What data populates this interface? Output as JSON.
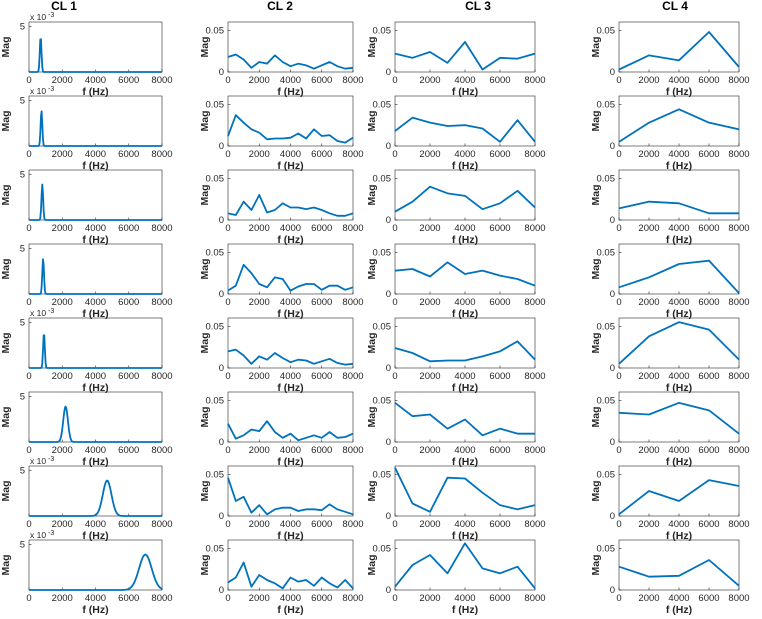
{
  "colors": {
    "series": "#0072BD",
    "axes": "#262626",
    "background": "#ffffff"
  },
  "columns": [
    {
      "title": "CL 1",
      "yticks": [
        "5"
      ],
      "exponent": "x 10",
      "exponent_power": "-3"
    },
    {
      "title": "CL 2",
      "yticks": [
        "0",
        "0.05"
      ]
    },
    {
      "title": "CL 3",
      "yticks": [
        "0",
        "0.05"
      ]
    },
    {
      "title": "CL 4",
      "yticks": [
        "0",
        "0.05"
      ]
    }
  ],
  "xticks": [
    "0",
    "2000",
    "4000",
    "6000",
    "8000"
  ],
  "xlabel": "f (Hz)",
  "ylabel": "Mag",
  "chart_data": [
    {
      "id": "r1c1",
      "type": "line",
      "ylabel": "Mag",
      "xlabel": "f (Hz)",
      "xlim": [
        0,
        8000
      ],
      "ylim": [
        0,
        0.0055
      ],
      "yscale_label": "x10^-3",
      "series": [
        {
          "peak_x": 700,
          "peak_y": 0.0039,
          "width": 50
        }
      ]
    },
    {
      "id": "r2c1",
      "type": "line",
      "ylabel": "Mag",
      "xlabel": "f (Hz)",
      "xlim": [
        0,
        8000
      ],
      "ylim": [
        0,
        0.0055
      ],
      "yscale_label": "x10^-3",
      "series": [
        {
          "peak_x": 750,
          "peak_y": 0.0039,
          "width": 50
        }
      ]
    },
    {
      "id": "r3c1",
      "type": "line",
      "ylabel": "Mag",
      "xlabel": "f (Hz)",
      "xlim": [
        0,
        8000
      ],
      "ylim": [
        0,
        0.0055
      ],
      "series": [
        {
          "peak_x": 800,
          "peak_y": 0.0039,
          "width": 50
        }
      ]
    },
    {
      "id": "r4c1",
      "type": "line",
      "ylabel": "Mag",
      "xlabel": "f (Hz)",
      "xlim": [
        0,
        8000
      ],
      "ylim": [
        0,
        0.0055
      ],
      "series": [
        {
          "peak_x": 850,
          "peak_y": 0.0039,
          "width": 50
        }
      ]
    },
    {
      "id": "r5c1",
      "type": "line",
      "ylabel": "Mag",
      "xlabel": "f (Hz)",
      "xlim": [
        0,
        8000
      ],
      "ylim": [
        0,
        0.0055
      ],
      "yscale_label": "x10^-3",
      "series": [
        {
          "peak_x": 900,
          "peak_y": 0.0039,
          "width": 50
        }
      ]
    },
    {
      "id": "r6c1",
      "type": "line",
      "ylabel": "Mag",
      "xlabel": "f (Hz)",
      "xlim": [
        0,
        8000
      ],
      "ylim": [
        0,
        0.0055
      ],
      "series": [
        {
          "peak_x": 2200,
          "peak_y": 0.0039,
          "width": 140
        }
      ]
    },
    {
      "id": "r7c1",
      "type": "line",
      "ylabel": "Mag",
      "xlabel": "f (Hz)",
      "xlim": [
        0,
        8000
      ],
      "ylim": [
        0,
        0.0055
      ],
      "yscale_label": "x10^-3",
      "series": [
        {
          "peak_x": 4700,
          "peak_y": 0.0039,
          "width": 260
        }
      ]
    },
    {
      "id": "r8c1",
      "type": "line",
      "ylabel": "Mag",
      "xlabel": "f (Hz)",
      "xlim": [
        0,
        8000
      ],
      "ylim": [
        0,
        0.0055
      ],
      "yscale_label": "x10^-3",
      "series": [
        {
          "peak_x": 7000,
          "peak_y": 0.0039,
          "width": 380
        }
      ]
    },
    {
      "id": "r1c2",
      "type": "line",
      "ylabel": "Mag",
      "xlabel": "f (Hz)",
      "xlim": [
        0,
        8000
      ],
      "ylim": [
        0,
        0.06
      ],
      "x": [
        0,
        500,
        1000,
        1500,
        2000,
        2500,
        3000,
        3500,
        4000,
        4500,
        5000,
        5500,
        6000,
        6500,
        7000,
        7500,
        8000
      ],
      "y": [
        0.018,
        0.021,
        0.015,
        0.005,
        0.012,
        0.01,
        0.02,
        0.012,
        0.007,
        0.01,
        0.008,
        0.004,
        0.008,
        0.012,
        0.007,
        0.004,
        0.005
      ]
    },
    {
      "id": "r2c2",
      "type": "line",
      "ylabel": "Mag",
      "xlabel": "f (Hz)",
      "xlim": [
        0,
        8000
      ],
      "ylim": [
        0,
        0.06
      ],
      "x": [
        0,
        500,
        1000,
        1500,
        2000,
        2500,
        3000,
        3500,
        4000,
        4500,
        5000,
        5500,
        6000,
        6500,
        7000,
        7500,
        8000
      ],
      "y": [
        0.012,
        0.037,
        0.028,
        0.02,
        0.016,
        0.008,
        0.009,
        0.009,
        0.01,
        0.015,
        0.009,
        0.02,
        0.012,
        0.013,
        0.006,
        0.004,
        0.01
      ]
    },
    {
      "id": "r3c2",
      "type": "line",
      "ylabel": "Mag",
      "xlabel": "f (Hz)",
      "xlim": [
        0,
        8000
      ],
      "ylim": [
        0,
        0.06
      ],
      "x": [
        0,
        500,
        1000,
        1500,
        2000,
        2500,
        3000,
        3500,
        4000,
        4500,
        5000,
        5500,
        6000,
        6500,
        7000,
        7500,
        8000
      ],
      "y": [
        0.008,
        0.006,
        0.022,
        0.012,
        0.03,
        0.009,
        0.012,
        0.02,
        0.015,
        0.015,
        0.013,
        0.015,
        0.012,
        0.008,
        0.005,
        0.005,
        0.008
      ]
    },
    {
      "id": "r4c2",
      "type": "line",
      "ylabel": "Mag",
      "xlabel": "f (Hz)",
      "xlim": [
        0,
        8000
      ],
      "ylim": [
        0,
        0.06
      ],
      "x": [
        0,
        500,
        1000,
        1500,
        2000,
        2500,
        3000,
        3500,
        4000,
        4500,
        5000,
        5500,
        6000,
        6500,
        7000,
        7500,
        8000
      ],
      "y": [
        0.004,
        0.01,
        0.035,
        0.025,
        0.012,
        0.008,
        0.02,
        0.018,
        0.004,
        0.009,
        0.012,
        0.012,
        0.005,
        0.01,
        0.01,
        0.005,
        0.008
      ]
    },
    {
      "id": "r5c2",
      "type": "line",
      "ylabel": "Mag",
      "xlabel": "f (Hz)",
      "xlim": [
        0,
        8000
      ],
      "ylim": [
        0,
        0.06
      ],
      "x": [
        0,
        500,
        1000,
        1500,
        2000,
        2500,
        3000,
        3500,
        4000,
        4500,
        5000,
        5500,
        6000,
        6500,
        7000,
        7500,
        8000
      ],
      "y": [
        0.02,
        0.022,
        0.015,
        0.005,
        0.014,
        0.01,
        0.018,
        0.012,
        0.007,
        0.01,
        0.009,
        0.005,
        0.008,
        0.011,
        0.006,
        0.004,
        0.005
      ]
    },
    {
      "id": "r6c2",
      "type": "line",
      "ylabel": "Mag",
      "xlabel": "f (Hz)",
      "xlim": [
        0,
        8000
      ],
      "ylim": [
        0,
        0.06
      ],
      "x": [
        0,
        500,
        1000,
        1500,
        2000,
        2500,
        3000,
        3500,
        4000,
        4500,
        5000,
        5500,
        6000,
        6500,
        7000,
        7500,
        8000
      ],
      "y": [
        0.022,
        0.004,
        0.008,
        0.015,
        0.013,
        0.025,
        0.012,
        0.005,
        0.01,
        0.002,
        0.005,
        0.008,
        0.005,
        0.012,
        0.005,
        0.006,
        0.01
      ]
    },
    {
      "id": "r7c2",
      "type": "line",
      "ylabel": "Mag",
      "xlabel": "f (Hz)",
      "xlim": [
        0,
        8000
      ],
      "ylim": [
        0,
        0.06
      ],
      "x": [
        0,
        500,
        1000,
        1500,
        2000,
        2500,
        3000,
        3500,
        4000,
        4500,
        5000,
        5500,
        6000,
        6500,
        7000,
        7500,
        8000
      ],
      "y": [
        0.046,
        0.018,
        0.023,
        0.004,
        0.013,
        0.002,
        0.008,
        0.01,
        0.01,
        0.006,
        0.008,
        0.008,
        0.007,
        0.014,
        0.008,
        0.005,
        0.002
      ]
    },
    {
      "id": "r8c2",
      "type": "line",
      "ylabel": "Mag",
      "xlabel": "f (Hz)",
      "xlim": [
        0,
        8000
      ],
      "ylim": [
        0,
        0.06
      ],
      "x": [
        0,
        500,
        1000,
        1500,
        2000,
        2500,
        3000,
        3500,
        4000,
        4500,
        5000,
        5500,
        6000,
        6500,
        7000,
        7500,
        8000
      ],
      "y": [
        0.009,
        0.015,
        0.033,
        0.004,
        0.018,
        0.012,
        0.008,
        0.002,
        0.015,
        0.01,
        0.012,
        0.005,
        0.015,
        0.008,
        0.003,
        0.012,
        0.002
      ]
    },
    {
      "id": "r1c3",
      "type": "line",
      "ylabel": "Mag",
      "xlabel": "f (Hz)",
      "xlim": [
        0,
        8000
      ],
      "ylim": [
        0,
        0.06
      ],
      "x": [
        0,
        1000,
        2000,
        3000,
        4000,
        5000,
        6000,
        7000,
        8000
      ],
      "y": [
        0.022,
        0.017,
        0.024,
        0.011,
        0.036,
        0.003,
        0.017,
        0.016,
        0.022
      ]
    },
    {
      "id": "r2c3",
      "type": "line",
      "ylabel": "Mag",
      "xlabel": "f (Hz)",
      "xlim": [
        0,
        8000
      ],
      "ylim": [
        0,
        0.06
      ],
      "x": [
        0,
        1000,
        2000,
        3000,
        4000,
        5000,
        6000,
        7000,
        8000
      ],
      "y": [
        0.018,
        0.034,
        0.028,
        0.024,
        0.025,
        0.021,
        0.005,
        0.031,
        0.005
      ]
    },
    {
      "id": "r3c3",
      "type": "line",
      "ylabel": "Mag",
      "xlabel": "f (Hz)",
      "xlim": [
        0,
        8000
      ],
      "ylim": [
        0,
        0.06
      ],
      "x": [
        0,
        1000,
        2000,
        3000,
        4000,
        5000,
        6000,
        7000,
        8000
      ],
      "y": [
        0.01,
        0.022,
        0.04,
        0.032,
        0.029,
        0.013,
        0.02,
        0.035,
        0.015
      ]
    },
    {
      "id": "r4c3",
      "type": "line",
      "ylabel": "Mag",
      "xlabel": "f (Hz)",
      "xlim": [
        0,
        8000
      ],
      "ylim": [
        0,
        0.06
      ],
      "x": [
        0,
        1000,
        2000,
        3000,
        4000,
        5000,
        6000,
        7000,
        8000
      ],
      "y": [
        0.028,
        0.03,
        0.021,
        0.038,
        0.024,
        0.028,
        0.022,
        0.018,
        0.01
      ]
    },
    {
      "id": "r5c3",
      "type": "line",
      "ylabel": "Mag",
      "xlabel": "f (Hz)",
      "xlim": [
        0,
        8000
      ],
      "ylim": [
        0,
        0.06
      ],
      "x": [
        0,
        1000,
        2000,
        3000,
        4000,
        5000,
        6000,
        7000,
        8000
      ],
      "y": [
        0.024,
        0.018,
        0.008,
        0.009,
        0.009,
        0.014,
        0.02,
        0.032,
        0.01
      ]
    },
    {
      "id": "r6c3",
      "type": "line",
      "ylabel": "Mag",
      "xlabel": "f (Hz)",
      "xlim": [
        0,
        8000
      ],
      "ylim": [
        0,
        0.06
      ],
      "x": [
        0,
        1000,
        2000,
        3000,
        4000,
        5000,
        6000,
        7000,
        8000
      ],
      "y": [
        0.047,
        0.031,
        0.033,
        0.016,
        0.027,
        0.008,
        0.016,
        0.01,
        0.01
      ]
    },
    {
      "id": "r7c3",
      "type": "line",
      "ylabel": "Mag",
      "xlabel": "f (Hz)",
      "xlim": [
        0,
        8000
      ],
      "ylim": [
        0,
        0.06
      ],
      "x": [
        0,
        1000,
        2000,
        3000,
        4000,
        5000,
        6000,
        7000,
        8000
      ],
      "y": [
        0.058,
        0.015,
        0.005,
        0.046,
        0.045,
        0.028,
        0.013,
        0.008,
        0.013
      ]
    },
    {
      "id": "r8c3",
      "type": "line",
      "ylabel": "Mag",
      "xlabel": "f (Hz)",
      "xlim": [
        0,
        8000
      ],
      "ylim": [
        0,
        0.06
      ],
      "x": [
        0,
        1000,
        2000,
        3000,
        4000,
        5000,
        6000,
        7000,
        8000
      ],
      "y": [
        0.004,
        0.03,
        0.042,
        0.02,
        0.056,
        0.026,
        0.02,
        0.028,
        0.002
      ]
    },
    {
      "id": "r1c4",
      "type": "line",
      "ylabel": "Mag",
      "xlabel": "f (Hz)",
      "xlim": [
        0,
        8000
      ],
      "ylim": [
        0,
        0.06
      ],
      "x": [
        0,
        2000,
        4000,
        6000,
        8000
      ],
      "y": [
        0.003,
        0.02,
        0.014,
        0.048,
        0.006
      ]
    },
    {
      "id": "r2c4",
      "type": "line",
      "ylabel": "Mag",
      "xlabel": "f (Hz)",
      "xlim": [
        0,
        8000
      ],
      "ylim": [
        0,
        0.06
      ],
      "x": [
        0,
        2000,
        4000,
        6000,
        8000
      ],
      "y": [
        0.005,
        0.028,
        0.044,
        0.028,
        0.02
      ]
    },
    {
      "id": "r3c4",
      "type": "line",
      "ylabel": "Mag",
      "xlabel": "f (Hz)",
      "xlim": [
        0,
        8000
      ],
      "ylim": [
        0,
        0.06
      ],
      "x": [
        0,
        2000,
        4000,
        6000,
        8000
      ],
      "y": [
        0.014,
        0.022,
        0.02,
        0.008,
        0.008
      ]
    },
    {
      "id": "r4c4",
      "type": "line",
      "ylabel": "Mag",
      "xlabel": "f (Hz)",
      "xlim": [
        0,
        8000
      ],
      "ylim": [
        0,
        0.06
      ],
      "x": [
        0,
        2000,
        4000,
        6000,
        8000
      ],
      "y": [
        0.008,
        0.02,
        0.036,
        0.04,
        0.001
      ]
    },
    {
      "id": "r5c4",
      "type": "line",
      "ylabel": "Mag",
      "xlabel": "f (Hz)",
      "xlim": [
        0,
        8000
      ],
      "ylim": [
        0,
        0.06
      ],
      "x": [
        0,
        2000,
        4000,
        6000,
        8000
      ],
      "y": [
        0.005,
        0.038,
        0.055,
        0.046,
        0.01
      ]
    },
    {
      "id": "r6c4",
      "type": "line",
      "ylabel": "Mag",
      "xlabel": "f (Hz)",
      "xlim": [
        0,
        8000
      ],
      "ylim": [
        0,
        0.06
      ],
      "x": [
        0,
        2000,
        4000,
        6000,
        8000
      ],
      "y": [
        0.035,
        0.033,
        0.047,
        0.038,
        0.01
      ]
    },
    {
      "id": "r7c4",
      "type": "line",
      "ylabel": "Mag",
      "xlabel": "f (Hz)",
      "xlim": [
        0,
        8000
      ],
      "ylim": [
        0,
        0.06
      ],
      "x": [
        0,
        2000,
        4000,
        6000,
        8000
      ],
      "y": [
        0.002,
        0.03,
        0.018,
        0.043,
        0.036
      ]
    },
    {
      "id": "r8c4",
      "type": "line",
      "ylabel": "Mag",
      "xlabel": "f (Hz)",
      "xlim": [
        0,
        8000
      ],
      "ylim": [
        0,
        0.06
      ],
      "x": [
        0,
        2000,
        4000,
        6000,
        8000
      ],
      "y": [
        0.028,
        0.016,
        0.017,
        0.036,
        0.005
      ]
    }
  ]
}
